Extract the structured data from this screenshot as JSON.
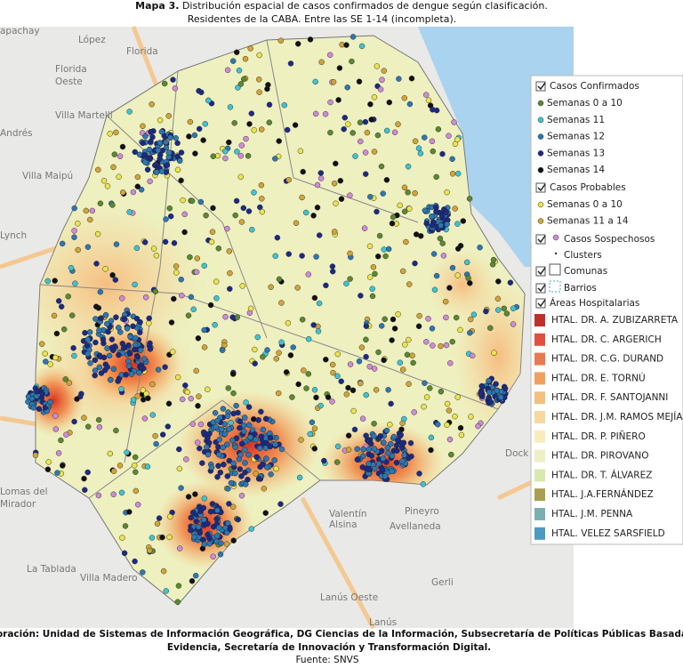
{
  "title": {
    "label": "Mapa 3.",
    "line1": "Distribución espacial de casos confirmados de dengue según clasificación.",
    "line2": "Residentes de la CABA. Entre las SE 1-14 (incompleta)."
  },
  "place_labels": [
    "apachay",
    "López",
    "Florida",
    "Florida",
    "Oeste",
    "Villa Martelli",
    "Andrés",
    "Villa Maipú",
    "Lynch",
    "Lomas del",
    "Mirador",
    "Valentín",
    "Alsina",
    "Pineyro",
    "Avellaneda",
    "La Tablada",
    "Villa Madero",
    "Lanús Oeste",
    "Gerli",
    "Lanús",
    "Dock"
  ],
  "legend": {
    "confirmed": {
      "label": "Casos Confirmados",
      "items": [
        {
          "label": "Semanas 0 a 10",
          "color": "#5a8a2e"
        },
        {
          "label": "Semanas 11",
          "color": "#3cc4d4"
        },
        {
          "label": "Semanas 12",
          "color": "#2a78b4"
        },
        {
          "label": "Semanas 13",
          "color": "#1a2a86"
        },
        {
          "label": "Semanas 14",
          "color": "#111111"
        }
      ]
    },
    "probable": {
      "label": "Casos Probables",
      "items": [
        {
          "label": "Semanas 0 a 10",
          "color": "#ece44a"
        },
        {
          "label": "Semanas 11 a 14",
          "color": "#d4a434"
        }
      ]
    },
    "suspected": {
      "label": "Casos Sospechosos",
      "color": "#d08ad8"
    },
    "clusters": "Clusters",
    "comunas": "Comunas",
    "barrios": "Barrios",
    "hospital_areas": {
      "label": "Áreas Hospitalarias",
      "items": [
        {
          "label": "HTAL. DR. A. ZUBIZARRETA",
          "color": "#c0302a"
        },
        {
          "label": "HTAL. DR. C. ARGERICH",
          "color": "#e0503e"
        },
        {
          "label": "HTAL. DR. C.G. DURAND",
          "color": "#e87a50"
        },
        {
          "label": "HTAL. DR. E. TORNÚ",
          "color": "#f0a05e"
        },
        {
          "label": "HTAL. DR. F. SANTOJANNI",
          "color": "#f4c07e"
        },
        {
          "label": "HTAL. DR. J.M. RAMOS MEJÍA",
          "color": "#f6d8a0"
        },
        {
          "label": "HTAL. DR. P. PIÑERO",
          "color": "#f8ecbc"
        },
        {
          "label": "HTAL. DR. PIROVANO",
          "color": "#eef0c4"
        },
        {
          "label": "HTAL. DR. T. ÁLVAREZ",
          "color": "#d8e8ae"
        },
        {
          "label": "HTAL. J.A.FERNÁNDEZ",
          "color": "#a8a04e"
        },
        {
          "label": "HTAL. J.M. PENNA",
          "color": "#7ab0b0"
        },
        {
          "label": "HTAL. VELEZ SARSFIELD",
          "color": "#4a9ac4"
        }
      ]
    }
  },
  "footer": {
    "line1": "Elaboración: Unidad de Sistemas de Información Geográfica, DG Ciencias de la Información, Subsecretaría de Políticas Públicas Basadas en",
    "line2": "Evidencia, Secretaría de Innovación y Transformación Digital.",
    "line3": "Fuente: SNVS"
  }
}
